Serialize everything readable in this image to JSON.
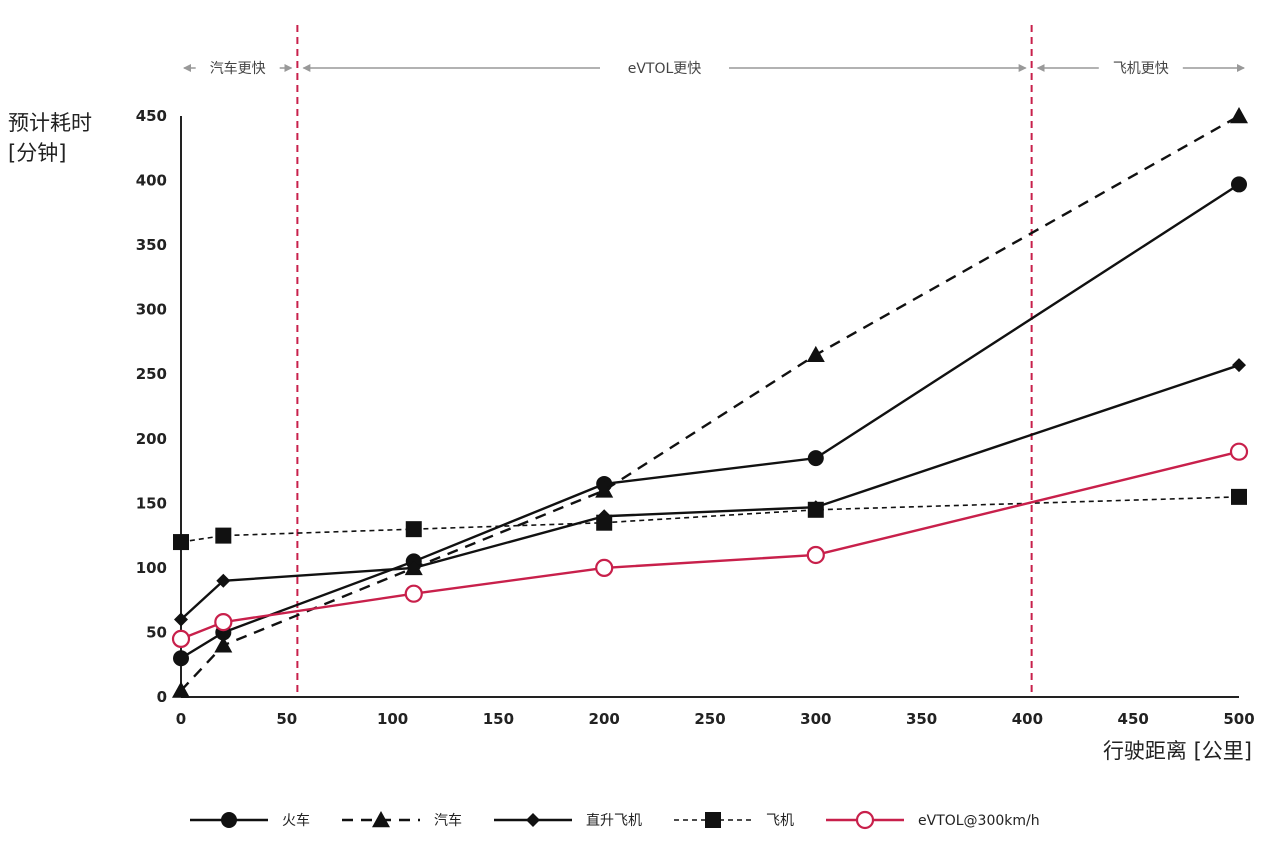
{
  "chart_data": {
    "type": "line",
    "title": "",
    "ylabel_line1": "预计耗时",
    "ylabel_line2": "[分钟]",
    "xlabel": "行驶距离 [公里]",
    "xlim": [
      0,
      500
    ],
    "ylim": [
      0,
      450
    ],
    "x_ticks": [
      0,
      50,
      100,
      150,
      200,
      250,
      300,
      350,
      400,
      450,
      500
    ],
    "y_ticks": [
      0,
      50,
      100,
      150,
      200,
      250,
      300,
      350,
      400,
      450
    ],
    "grid": false,
    "legend_position": "bottom",
    "thresholds": [
      {
        "x": 55,
        "color": "#c8204b"
      },
      {
        "x": 402,
        "color": "#c8204b"
      }
    ],
    "regions": [
      {
        "label": "汽车更快",
        "from": 0,
        "to": 55
      },
      {
        "label": "eVTOL更快",
        "from": 55,
        "to": 402
      },
      {
        "label": "飞机更快",
        "from": 402,
        "to": 500
      }
    ],
    "series": [
      {
        "name": "火车",
        "style": "solid",
        "marker": "circle",
        "color": "#111111",
        "points": [
          {
            "x": 0,
            "y": 30
          },
          {
            "x": 20,
            "y": 50
          },
          {
            "x": 110,
            "y": 105
          },
          {
            "x": 200,
            "y": 165
          },
          {
            "x": 300,
            "y": 185
          },
          {
            "x": 500,
            "y": 397
          }
        ]
      },
      {
        "name": "汽车",
        "style": "dashed",
        "marker": "triangle",
        "color": "#111111",
        "points": [
          {
            "x": 0,
            "y": 5
          },
          {
            "x": 20,
            "y": 40
          },
          {
            "x": 110,
            "y": 100
          },
          {
            "x": 200,
            "y": 160
          },
          {
            "x": 300,
            "y": 265
          },
          {
            "x": 500,
            "y": 450
          }
        ]
      },
      {
        "name": "直升飞机",
        "style": "solid",
        "marker": "diamond",
        "color": "#111111",
        "points": [
          {
            "x": 0,
            "y": 60
          },
          {
            "x": 20,
            "y": 90
          },
          {
            "x": 110,
            "y": 100
          },
          {
            "x": 200,
            "y": 140
          },
          {
            "x": 300,
            "y": 147
          },
          {
            "x": 500,
            "y": 257
          }
        ]
      },
      {
        "name": "飞机",
        "style": "dotted",
        "marker": "square",
        "color": "#111111",
        "points": [
          {
            "x": 0,
            "y": 120
          },
          {
            "x": 20,
            "y": 125
          },
          {
            "x": 110,
            "y": 130
          },
          {
            "x": 200,
            "y": 135
          },
          {
            "x": 300,
            "y": 145
          },
          {
            "x": 500,
            "y": 155
          }
        ]
      },
      {
        "name": "eVTOL@300km/h",
        "style": "solid",
        "marker": "open-circle",
        "color": "#c8204b",
        "points": [
          {
            "x": 0,
            "y": 45
          },
          {
            "x": 20,
            "y": 58
          },
          {
            "x": 110,
            "y": 80
          },
          {
            "x": 200,
            "y": 100
          },
          {
            "x": 300,
            "y": 110
          },
          {
            "x": 500,
            "y": 190
          }
        ]
      }
    ]
  }
}
